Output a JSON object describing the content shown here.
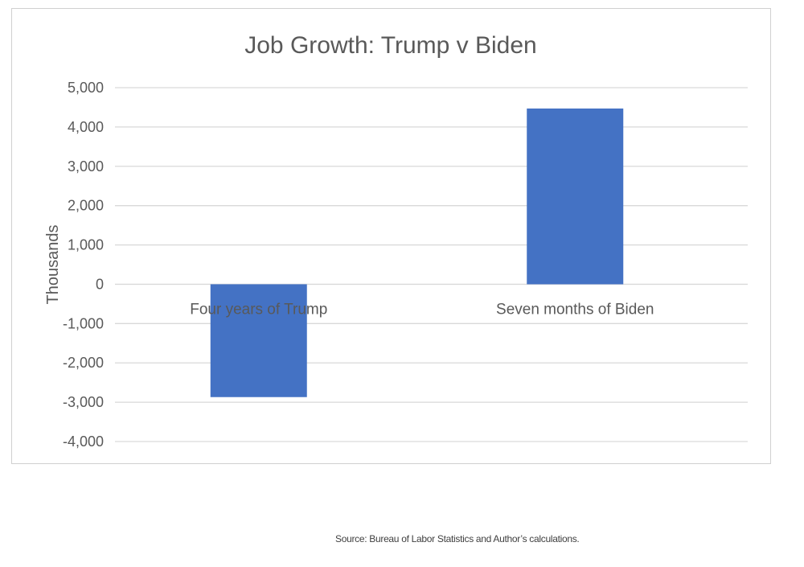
{
  "chart_data": {
    "type": "bar",
    "title": "Job Growth: Trump v Biden",
    "ylabel": "Thousands",
    "xlabel": "",
    "categories": [
      "Four years of Trump",
      "Seven months of Biden"
    ],
    "values": [
      -2870,
      4470
    ],
    "ylim": [
      -4000,
      5000
    ],
    "yticks": [
      5000,
      4000,
      3000,
      2000,
      1000,
      0,
      -1000,
      -2000,
      -3000,
      -4000
    ],
    "ytick_labels": [
      "5,000",
      "4,000",
      "3,000",
      "2,000",
      "1,000",
      "0",
      "-1,000",
      "-2,000",
      "-3,000",
      "-4,000"
    ],
    "grid": true,
    "legend": "none",
    "bar_color": "#4472c4",
    "gridline_color": "#d9d9d9"
  },
  "source_note": "Source: Bureau of Labor Statistics and Author’s calculations."
}
